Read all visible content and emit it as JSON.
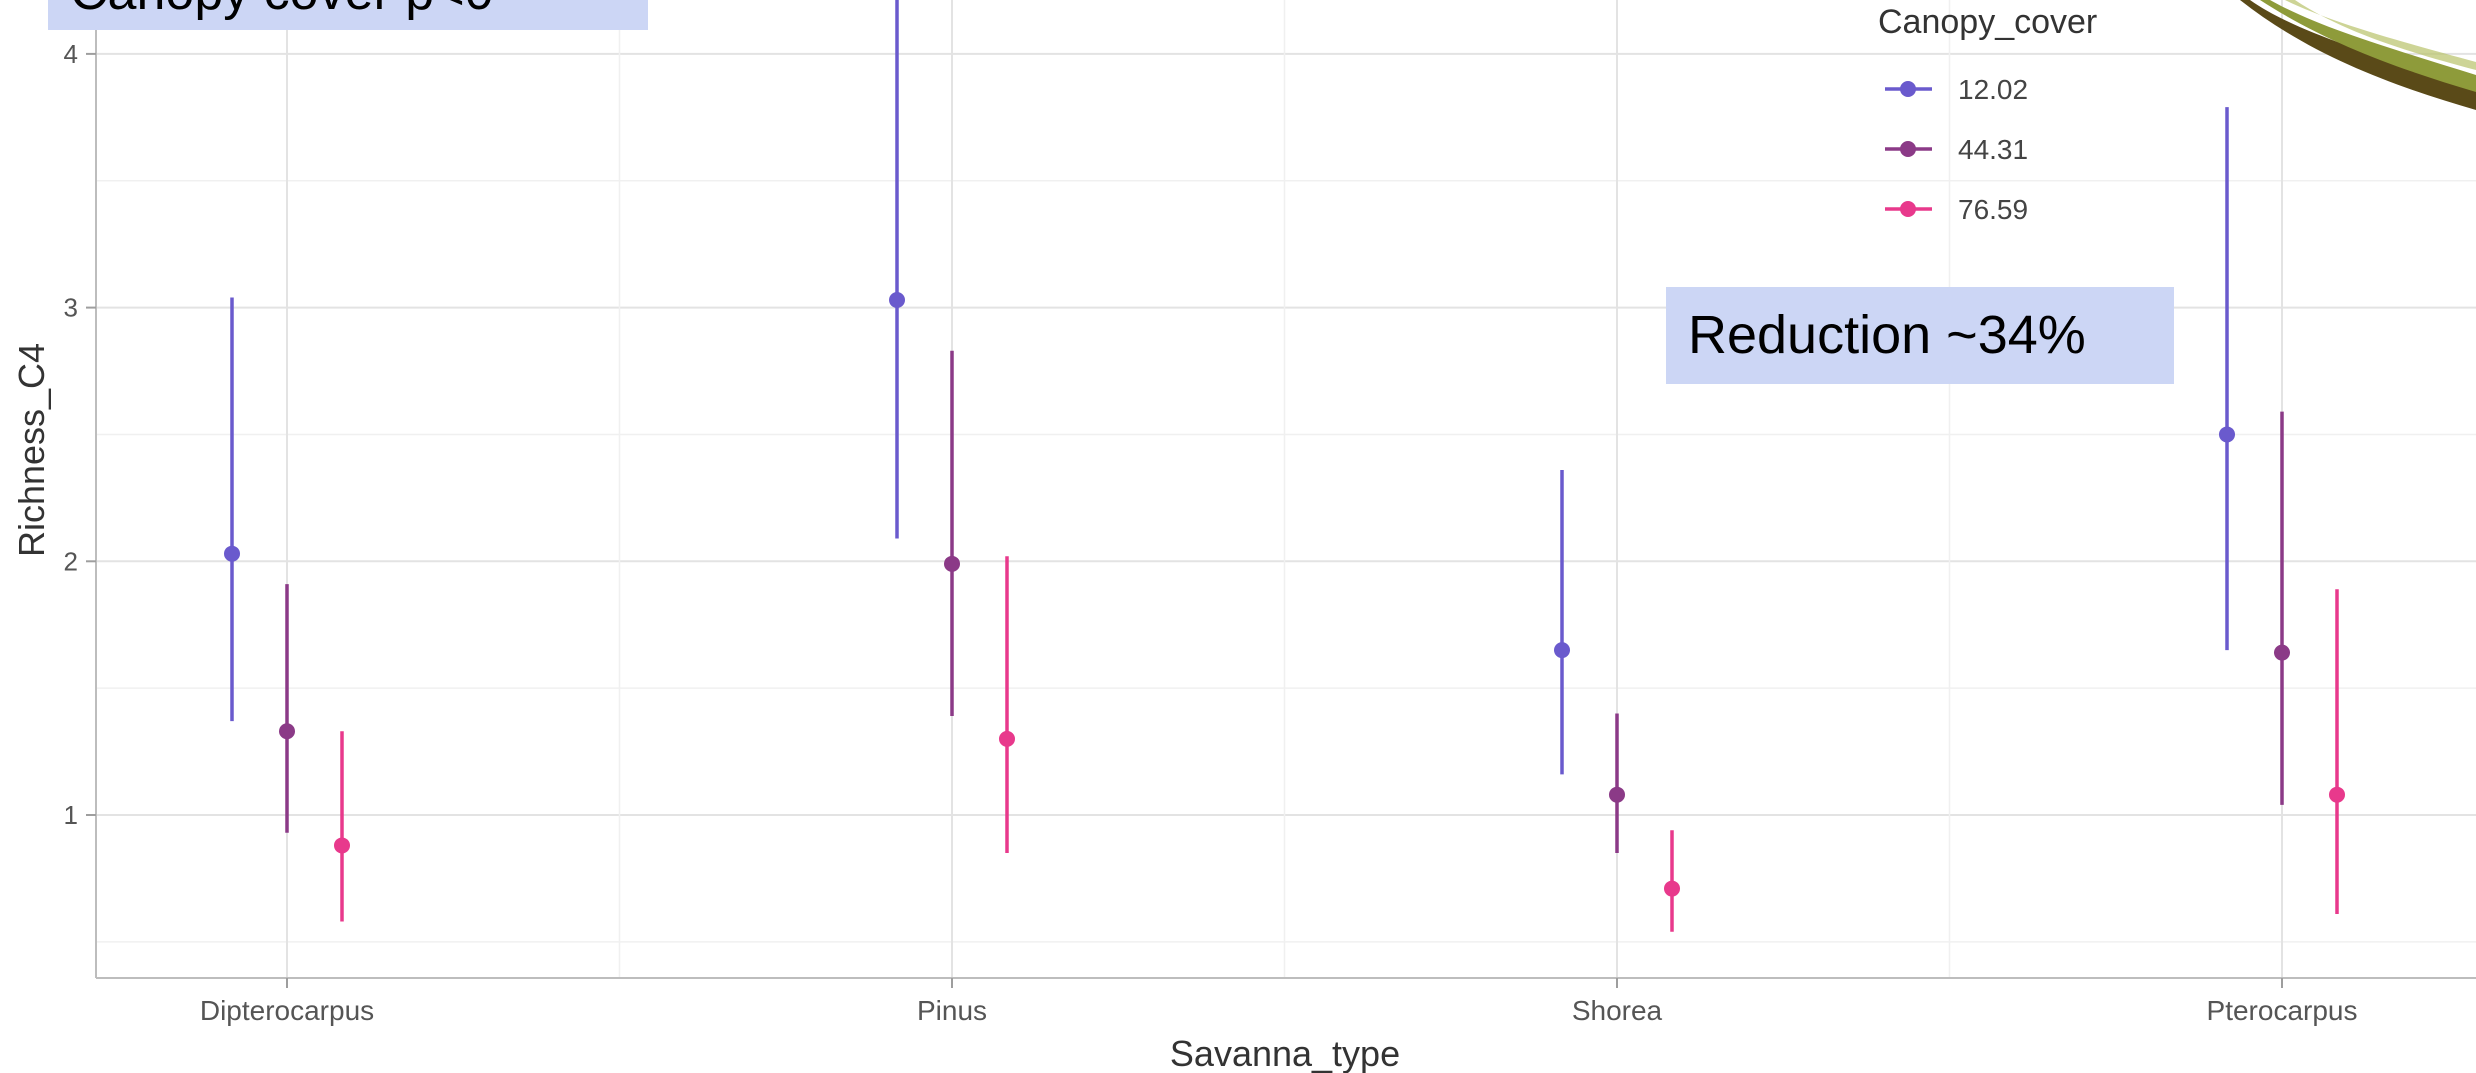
{
  "chart_data": {
    "type": "pointrange",
    "xlabel": "Savanna_type",
    "ylabel": "Richness_C4",
    "categories": [
      "Dipterocarpus",
      "Pinus",
      "Shorea",
      "Pterocarpus"
    ],
    "yticks": [
      1,
      2,
      3,
      4
    ],
    "ylim": [
      0.4,
      4.1
    ],
    "grid": true,
    "legend": {
      "title": "Canopy_cover",
      "position": "top-right"
    },
    "series": [
      {
        "name": "12.02",
        "color": "#6a5acd",
        "values": [
          2.03,
          3.03,
          1.65,
          2.5
        ],
        "lower": [
          1.37,
          2.09,
          1.16,
          1.65
        ],
        "upper": [
          3.04,
          4.35,
          2.36,
          3.79
        ]
      },
      {
        "name": "44.31",
        "color": "#8b3a87",
        "values": [
          1.33,
          1.99,
          1.08,
          1.64
        ],
        "lower": [
          0.93,
          1.39,
          0.85,
          1.04
        ],
        "upper": [
          1.91,
          2.83,
          1.4,
          2.59
        ]
      },
      {
        "name": "76.59",
        "color": "#e8398c",
        "values": [
          0.88,
          1.3,
          0.71,
          1.08
        ],
        "lower": [
          0.58,
          0.85,
          0.54,
          0.61
        ],
        "upper": [
          1.33,
          2.02,
          0.94,
          1.89
        ]
      }
    ]
  },
  "annotations": {
    "top_box_text": "Canopy cover p<0",
    "reduction_text": "Reduction ~34%"
  },
  "colors": {
    "annotation_bg": "#ccd6f5",
    "leaf_green": "#8e9b3a",
    "leaf_dark": "#5a4a18"
  },
  "icons": {
    "corner_image": "seed-pod-image"
  }
}
